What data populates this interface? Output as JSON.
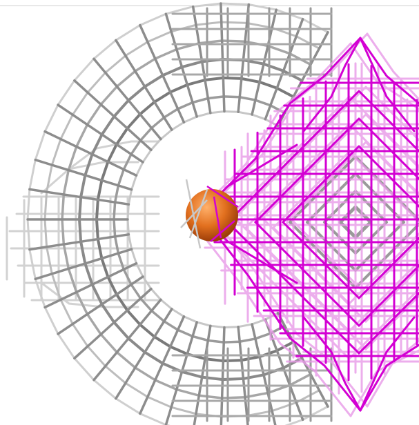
{
  "scene": {
    "background": "#ffffff",
    "border_color": "#cfcfcf",
    "gray_cage": {
      "name": "gray-wireframe-cage-icon",
      "stroke_dark": "#6e6e6e",
      "stroke_mid": "#9a9a9a",
      "stroke_light": "#cfcfcf"
    },
    "magenta_mesh": {
      "name": "magenta-wireframe-mesh-icon",
      "stroke_main": "#d400d4",
      "stroke_faint": "#e58ee5"
    },
    "sphere": {
      "name": "orange-sphere-icon",
      "color_center": "#f08a3a",
      "color_edge": "#b2470c"
    }
  }
}
